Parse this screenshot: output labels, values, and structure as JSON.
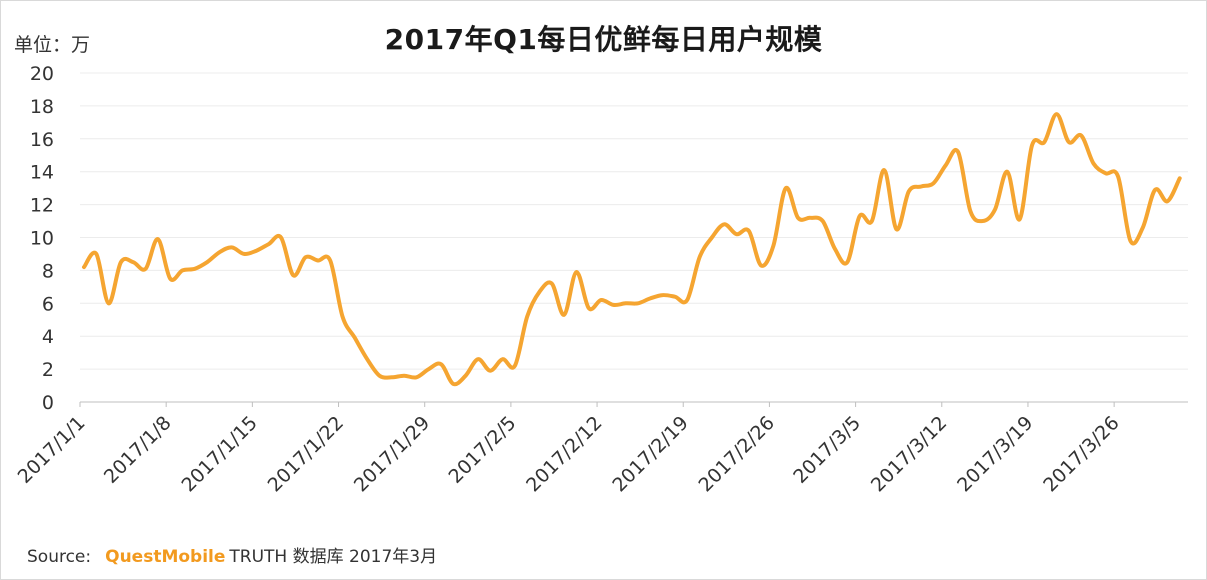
{
  "unit_label": "单位：万",
  "source": {
    "prefix": "Source:",
    "brand": "QuestMobile",
    "rest": "TRUTH 数据库 2017年3月"
  },
  "colors": {
    "line": "#F5A531",
    "grid": "#ececec",
    "axis": "#bfbfbf",
    "text": "#333333"
  },
  "chart_data": {
    "type": "line",
    "title": "2017年Q1每日优鲜每日用户规模",
    "xlabel": "",
    "ylabel": "单位：万",
    "ylim": [
      0,
      20
    ],
    "yticks": [
      0,
      2,
      4,
      6,
      8,
      10,
      12,
      14,
      16,
      18,
      20
    ],
    "xticks": [
      "2017/1/1",
      "2017/1/8",
      "2017/1/15",
      "2017/1/22",
      "2017/1/29",
      "2017/2/5",
      "2017/2/12",
      "2017/2/19",
      "2017/2/26",
      "2017/3/5",
      "2017/3/12",
      "2017/3/19",
      "2017/3/26"
    ],
    "grid": true,
    "legend": "none",
    "series": [
      {
        "x": [
          "2017/1/1",
          "2017/1/2",
          "2017/1/3",
          "2017/1/4",
          "2017/1/5",
          "2017/1/6",
          "2017/1/7",
          "2017/1/8",
          "2017/1/9",
          "2017/1/10",
          "2017/1/11",
          "2017/1/12",
          "2017/1/13",
          "2017/1/14",
          "2017/1/15",
          "2017/1/16",
          "2017/1/17",
          "2017/1/18",
          "2017/1/19",
          "2017/1/20",
          "2017/1/21",
          "2017/1/22",
          "2017/1/23",
          "2017/1/24",
          "2017/1/25",
          "2017/1/26",
          "2017/1/27",
          "2017/1/28",
          "2017/1/29",
          "2017/1/30",
          "2017/1/31",
          "2017/2/1",
          "2017/2/2",
          "2017/2/3",
          "2017/2/4",
          "2017/2/5",
          "2017/2/6",
          "2017/2/7",
          "2017/2/8",
          "2017/2/9",
          "2017/2/10",
          "2017/2/11",
          "2017/2/12",
          "2017/2/13",
          "2017/2/14",
          "2017/2/15",
          "2017/2/16",
          "2017/2/17",
          "2017/2/18",
          "2017/2/19",
          "2017/2/20",
          "2017/2/21",
          "2017/2/22",
          "2017/2/23",
          "2017/2/24",
          "2017/2/25",
          "2017/2/26",
          "2017/2/27",
          "2017/2/28",
          "2017/3/1",
          "2017/3/2",
          "2017/3/3",
          "2017/3/4",
          "2017/3/5",
          "2017/3/6",
          "2017/3/7",
          "2017/3/8",
          "2017/3/9",
          "2017/3/10",
          "2017/3/11",
          "2017/3/12",
          "2017/3/13",
          "2017/3/14",
          "2017/3/15",
          "2017/3/16",
          "2017/3/17",
          "2017/3/18",
          "2017/3/19",
          "2017/3/20",
          "2017/3/21",
          "2017/3/22",
          "2017/3/23",
          "2017/3/24",
          "2017/3/25",
          "2017/3/26",
          "2017/3/27",
          "2017/3/28",
          "2017/3/29",
          "2017/3/30",
          "2017/3/31"
        ],
        "values": [
          8.2,
          9.0,
          6.0,
          8.5,
          8.5,
          8.1,
          9.9,
          7.5,
          8.0,
          8.1,
          8.5,
          9.1,
          9.4,
          9.0,
          9.2,
          9.6,
          10.0,
          7.7,
          8.8,
          8.6,
          8.6,
          5.2,
          3.9,
          2.6,
          1.6,
          1.5,
          1.6,
          1.5,
          2.0,
          2.3,
          1.1,
          1.6,
          2.6,
          1.9,
          2.6,
          2.2,
          5.2,
          6.7,
          7.2,
          5.3,
          7.9,
          5.7,
          6.2,
          5.9,
          6.0,
          6.0,
          6.3,
          6.5,
          6.4,
          6.2,
          8.8,
          10.0,
          10.8,
          10.2,
          10.4,
          8.3,
          9.5,
          13.0,
          11.2,
          11.2,
          11.0,
          9.3,
          8.5,
          11.3,
          11.0,
          14.1,
          10.5,
          12.8,
          13.1,
          13.3,
          14.4,
          15.2,
          11.6,
          11.0,
          11.7,
          14.0,
          11.1,
          15.6,
          15.8,
          17.5,
          15.8,
          16.2,
          14.5,
          13.9,
          13.7,
          9.8,
          10.6,
          12.9,
          12.2,
          13.6
        ]
      }
    ]
  }
}
